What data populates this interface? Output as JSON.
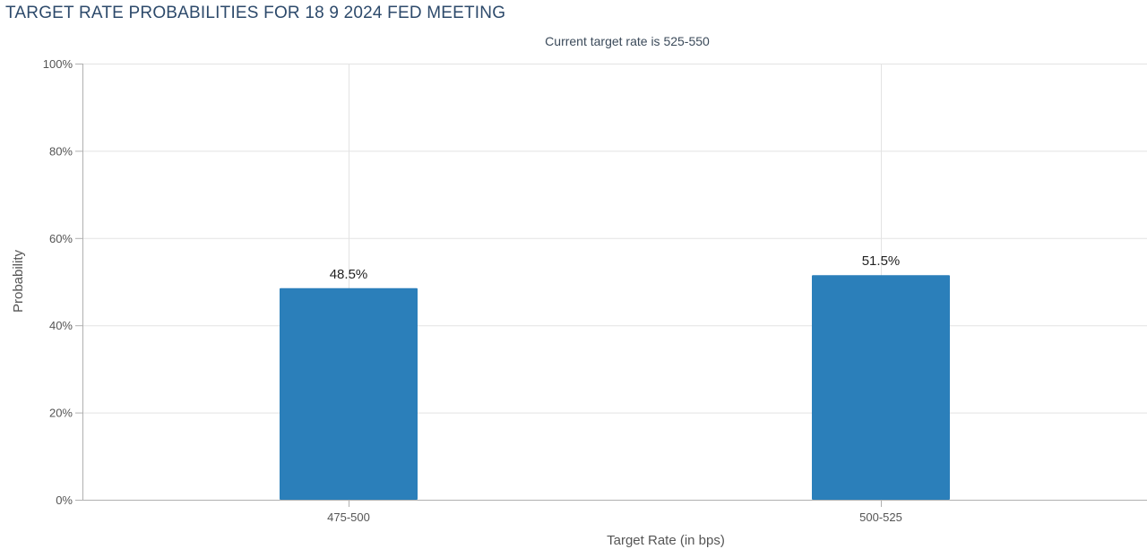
{
  "page": {
    "title": "TARGET RATE PROBABILITIES FOR 18 9 2024 FED MEETING"
  },
  "chart_data": {
    "type": "bar",
    "subtitle": "Current target rate is 525-550",
    "categories": [
      "475-500",
      "500-525"
    ],
    "values": [
      48.5,
      51.5
    ],
    "value_labels": [
      "48.5%",
      "51.5%"
    ],
    "xlabel": "Target Rate (in bps)",
    "ylabel": "Probability",
    "ylim": [
      0,
      100
    ],
    "yticks": [
      0,
      20,
      40,
      60,
      80,
      100
    ],
    "ytick_labels": [
      "0%",
      "20%",
      "40%",
      "60%",
      "80%",
      "100%"
    ],
    "grid": true,
    "legend": "none",
    "bar_color": "#2b7fba"
  }
}
